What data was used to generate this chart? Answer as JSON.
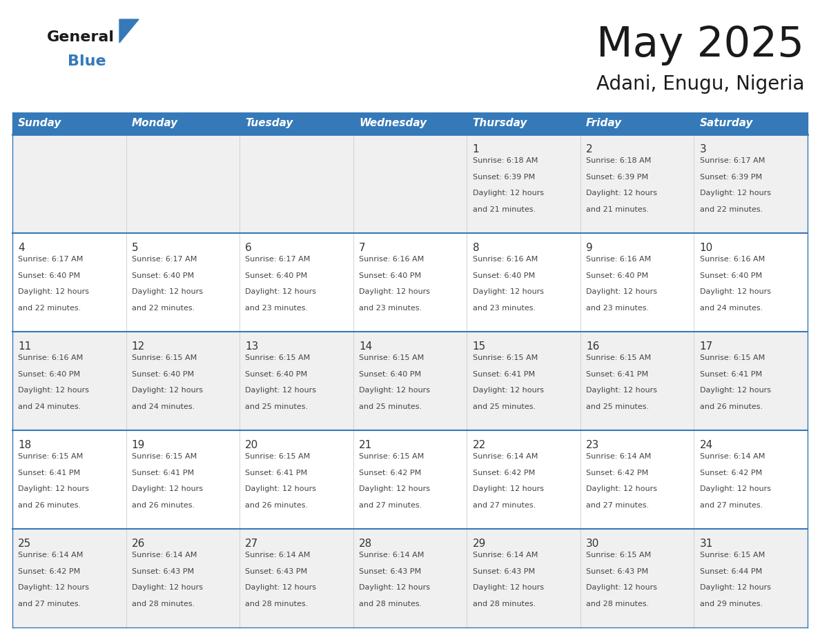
{
  "title": "May 2025",
  "subtitle": "Adani, Enugu, Nigeria",
  "days_of_week": [
    "Sunday",
    "Monday",
    "Tuesday",
    "Wednesday",
    "Thursday",
    "Friday",
    "Saturday"
  ],
  "header_bg": "#3579B8",
  "header_text": "#FFFFFF",
  "row_bg_even": "#F0F0F0",
  "row_bg_odd": "#FFFFFF",
  "cell_text_color": "#444444",
  "day_num_color": "#333333",
  "border_color": "#3579B8",
  "divider_color": "#CCCCCC",
  "logo_general_color": "#1a1a1a",
  "logo_blue_color": "#3579B8",
  "logo_triangle_color": "#3579B8",
  "logo_text_general": "General",
  "logo_text_blue": "Blue",
  "calendar_data": [
    [
      {
        "day": "",
        "sunrise": "",
        "sunset": "",
        "daylight": ""
      },
      {
        "day": "",
        "sunrise": "",
        "sunset": "",
        "daylight": ""
      },
      {
        "day": "",
        "sunrise": "",
        "sunset": "",
        "daylight": ""
      },
      {
        "day": "",
        "sunrise": "",
        "sunset": "",
        "daylight": ""
      },
      {
        "day": "1",
        "sunrise": "6:18 AM",
        "sunset": "6:39 PM",
        "daylight": "12 hours and 21 minutes."
      },
      {
        "day": "2",
        "sunrise": "6:18 AM",
        "sunset": "6:39 PM",
        "daylight": "12 hours and 21 minutes."
      },
      {
        "day": "3",
        "sunrise": "6:17 AM",
        "sunset": "6:39 PM",
        "daylight": "12 hours and 22 minutes."
      }
    ],
    [
      {
        "day": "4",
        "sunrise": "6:17 AM",
        "sunset": "6:40 PM",
        "daylight": "12 hours and 22 minutes."
      },
      {
        "day": "5",
        "sunrise": "6:17 AM",
        "sunset": "6:40 PM",
        "daylight": "12 hours and 22 minutes."
      },
      {
        "day": "6",
        "sunrise": "6:17 AM",
        "sunset": "6:40 PM",
        "daylight": "12 hours and 23 minutes."
      },
      {
        "day": "7",
        "sunrise": "6:16 AM",
        "sunset": "6:40 PM",
        "daylight": "12 hours and 23 minutes."
      },
      {
        "day": "8",
        "sunrise": "6:16 AM",
        "sunset": "6:40 PM",
        "daylight": "12 hours and 23 minutes."
      },
      {
        "day": "9",
        "sunrise": "6:16 AM",
        "sunset": "6:40 PM",
        "daylight": "12 hours and 23 minutes."
      },
      {
        "day": "10",
        "sunrise": "6:16 AM",
        "sunset": "6:40 PM",
        "daylight": "12 hours and 24 minutes."
      }
    ],
    [
      {
        "day": "11",
        "sunrise": "6:16 AM",
        "sunset": "6:40 PM",
        "daylight": "12 hours and 24 minutes."
      },
      {
        "day": "12",
        "sunrise": "6:15 AM",
        "sunset": "6:40 PM",
        "daylight": "12 hours and 24 minutes."
      },
      {
        "day": "13",
        "sunrise": "6:15 AM",
        "sunset": "6:40 PM",
        "daylight": "12 hours and 25 minutes."
      },
      {
        "day": "14",
        "sunrise": "6:15 AM",
        "sunset": "6:40 PM",
        "daylight": "12 hours and 25 minutes."
      },
      {
        "day": "15",
        "sunrise": "6:15 AM",
        "sunset": "6:41 PM",
        "daylight": "12 hours and 25 minutes."
      },
      {
        "day": "16",
        "sunrise": "6:15 AM",
        "sunset": "6:41 PM",
        "daylight": "12 hours and 25 minutes."
      },
      {
        "day": "17",
        "sunrise": "6:15 AM",
        "sunset": "6:41 PM",
        "daylight": "12 hours and 26 minutes."
      }
    ],
    [
      {
        "day": "18",
        "sunrise": "6:15 AM",
        "sunset": "6:41 PM",
        "daylight": "12 hours and 26 minutes."
      },
      {
        "day": "19",
        "sunrise": "6:15 AM",
        "sunset": "6:41 PM",
        "daylight": "12 hours and 26 minutes."
      },
      {
        "day": "20",
        "sunrise": "6:15 AM",
        "sunset": "6:41 PM",
        "daylight": "12 hours and 26 minutes."
      },
      {
        "day": "21",
        "sunrise": "6:15 AM",
        "sunset": "6:42 PM",
        "daylight": "12 hours and 27 minutes."
      },
      {
        "day": "22",
        "sunrise": "6:14 AM",
        "sunset": "6:42 PM",
        "daylight": "12 hours and 27 minutes."
      },
      {
        "day": "23",
        "sunrise": "6:14 AM",
        "sunset": "6:42 PM",
        "daylight": "12 hours and 27 minutes."
      },
      {
        "day": "24",
        "sunrise": "6:14 AM",
        "sunset": "6:42 PM",
        "daylight": "12 hours and 27 minutes."
      }
    ],
    [
      {
        "day": "25",
        "sunrise": "6:14 AM",
        "sunset": "6:42 PM",
        "daylight": "12 hours and 27 minutes."
      },
      {
        "day": "26",
        "sunrise": "6:14 AM",
        "sunset": "6:43 PM",
        "daylight": "12 hours and 28 minutes."
      },
      {
        "day": "27",
        "sunrise": "6:14 AM",
        "sunset": "6:43 PM",
        "daylight": "12 hours and 28 minutes."
      },
      {
        "day": "28",
        "sunrise": "6:14 AM",
        "sunset": "6:43 PM",
        "daylight": "12 hours and 28 minutes."
      },
      {
        "day": "29",
        "sunrise": "6:14 AM",
        "sunset": "6:43 PM",
        "daylight": "12 hours and 28 minutes."
      },
      {
        "day": "30",
        "sunrise": "6:15 AM",
        "sunset": "6:43 PM",
        "daylight": "12 hours and 28 minutes."
      },
      {
        "day": "31",
        "sunrise": "6:15 AM",
        "sunset": "6:44 PM",
        "daylight": "12 hours and 29 minutes."
      }
    ]
  ]
}
